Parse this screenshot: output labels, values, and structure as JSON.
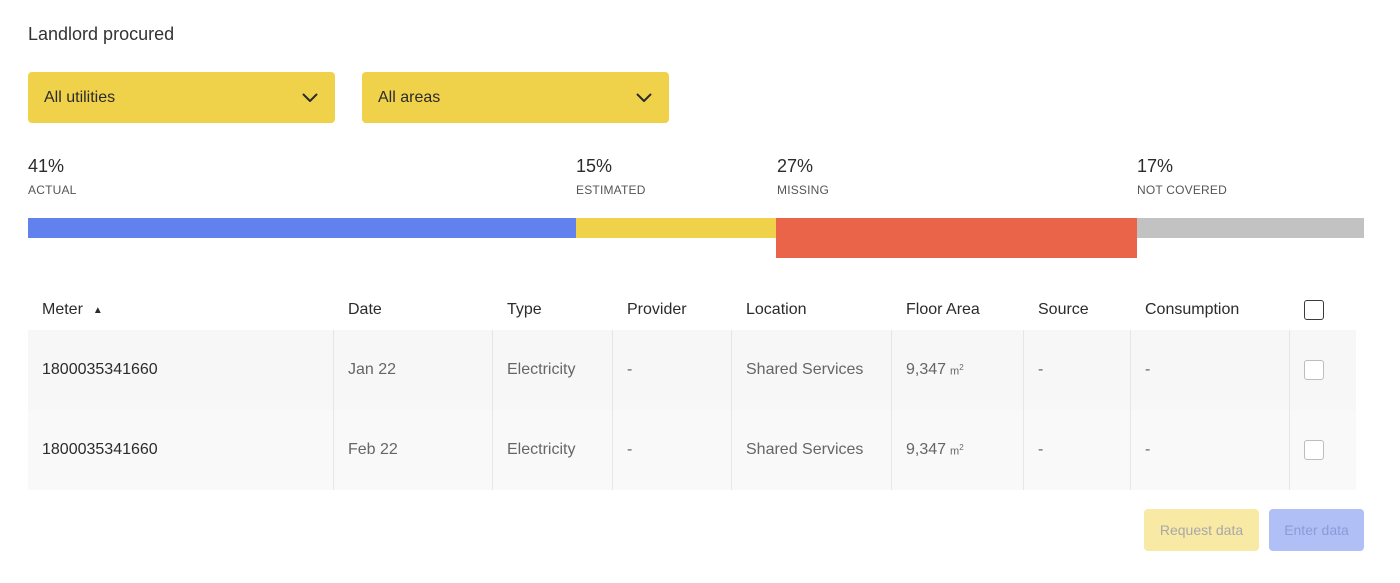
{
  "section_title": "Landlord procured",
  "filters": {
    "utilities": {
      "selected": "All utilities"
    },
    "areas": {
      "selected": "All areas"
    }
  },
  "coverage": {
    "actual": {
      "percent": "41%",
      "label": "ACTUAL",
      "value": 41,
      "color": "#6181ef"
    },
    "estimated": {
      "percent": "15%",
      "label": "ESTIMATED",
      "value": 15,
      "color": "#f0d24a"
    },
    "missing": {
      "percent": "27%",
      "label": "MISSING",
      "value": 27,
      "color": "#e96448"
    },
    "not_covered": {
      "percent": "17%",
      "label": "NOT COVERED",
      "value": 17,
      "color": "#c2c2c2"
    }
  },
  "table": {
    "headers": {
      "meter": "Meter",
      "sort_indicator": "▲",
      "date": "Date",
      "type": "Type",
      "provider": "Provider",
      "location": "Location",
      "floor_area": "Floor Area",
      "source": "Source",
      "consumption": "Consumption"
    },
    "rows": [
      {
        "meter": "1800035341660",
        "date": "Jan 22",
        "type": "Electricity",
        "provider": "-",
        "location": "Shared Services",
        "floor_area": "9,347",
        "unit": "m",
        "unit_exp": "2",
        "source": "-",
        "consumption": "-"
      },
      {
        "meter": "1800035341660",
        "date": "Feb 22",
        "type": "Electricity",
        "provider": "-",
        "location": "Shared Services",
        "floor_area": "9,347",
        "unit": "m",
        "unit_exp": "2",
        "source": "-",
        "consumption": "-"
      }
    ]
  },
  "actions": {
    "request_label": "Request data",
    "enter_label": "Enter data"
  }
}
